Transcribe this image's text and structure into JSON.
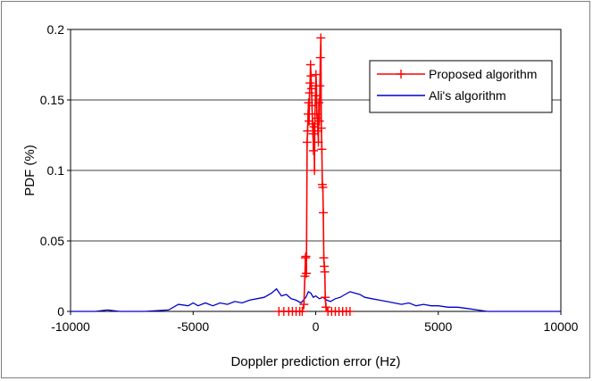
{
  "chart_data": {
    "type": "line",
    "title": "",
    "xlabel": "Doppler prediction error (Hz)",
    "ylabel": "PDF (%)",
    "xlim": [
      -10000,
      10000
    ],
    "ylim": [
      0,
      0.2
    ],
    "x_ticks": [
      "-10000",
      "-5000",
      "0",
      "5000",
      "10000"
    ],
    "y_ticks": [
      "0",
      "0.05",
      "0.1",
      "0.15",
      "0.2"
    ],
    "x_tick_values": [
      -10000,
      -5000,
      0,
      5000,
      10000
    ],
    "y_tick_values": [
      0,
      0.05,
      0.1,
      0.15,
      0.2
    ],
    "grid": "horizontal",
    "legend_position": "top-right",
    "series": [
      {
        "name": "Proposed algorithm",
        "color": "#ff0000",
        "marker": "plus",
        "points": [
          [
            -1500,
            0
          ],
          [
            -1300,
            0
          ],
          [
            -1100,
            0
          ],
          [
            -950,
            0
          ],
          [
            -800,
            0
          ],
          [
            -650,
            0
          ],
          [
            -550,
            0
          ],
          [
            -480,
            0.005
          ],
          [
            -440,
            0.025
          ],
          [
            -420,
            0.038
          ],
          [
            -400,
            0.039
          ],
          [
            -380,
            0.027
          ],
          [
            -350,
            0.12
          ],
          [
            -330,
            0.128
          ],
          [
            -310,
            0.14
          ],
          [
            -290,
            0.148
          ],
          [
            -270,
            0.135
          ],
          [
            -250,
            0.155
          ],
          [
            -230,
            0.162
          ],
          [
            -210,
            0.175
          ],
          [
            -190,
            0.167
          ],
          [
            -170,
            0.158
          ],
          [
            -150,
            0.146
          ],
          [
            -130,
            0.133
          ],
          [
            -110,
            0.126
          ],
          [
            -90,
            0.114
          ],
          [
            -70,
            0.131
          ],
          [
            -50,
            0.1
          ],
          [
            -30,
            0.14
          ],
          [
            -10,
            0.153
          ],
          [
            10,
            0.168
          ],
          [
            30,
            0.16
          ],
          [
            50,
            0.14
          ],
          [
            70,
            0.137
          ],
          [
            90,
            0.128
          ],
          [
            110,
            0.12
          ],
          [
            130,
            0.148
          ],
          [
            150,
            0.135
          ],
          [
            170,
            0.16
          ],
          [
            190,
            0.18
          ],
          [
            210,
            0.194
          ],
          [
            230,
            0.13
          ],
          [
            250,
            0.115
          ],
          [
            270,
            0.09
          ],
          [
            290,
            0.088
          ],
          [
            310,
            0.07
          ],
          [
            330,
            0.038
          ],
          [
            350,
            0.032
          ],
          [
            370,
            0.028
          ],
          [
            390,
            0.01
          ],
          [
            420,
            0.003
          ],
          [
            500,
            0
          ],
          [
            650,
            0
          ],
          [
            800,
            0
          ],
          [
            950,
            0
          ],
          [
            1100,
            0
          ],
          [
            1250,
            0
          ],
          [
            1400,
            0
          ]
        ]
      },
      {
        "name": "Ali's algorithm",
        "color": "#0000cc",
        "marker": "none",
        "points": [
          [
            -10000,
            0
          ],
          [
            -9000,
            0
          ],
          [
            -8500,
            0.001
          ],
          [
            -8000,
            0
          ],
          [
            -7000,
            0
          ],
          [
            -6000,
            0.001
          ],
          [
            -5600,
            0.005
          ],
          [
            -5200,
            0.004
          ],
          [
            -5000,
            0.006
          ],
          [
            -4800,
            0.004
          ],
          [
            -4500,
            0.006
          ],
          [
            -4200,
            0.004
          ],
          [
            -3900,
            0.006
          ],
          [
            -3600,
            0.005
          ],
          [
            -3300,
            0.007
          ],
          [
            -3000,
            0.006
          ],
          [
            -2700,
            0.008
          ],
          [
            -2400,
            0.009
          ],
          [
            -2100,
            0.01
          ],
          [
            -1800,
            0.013
          ],
          [
            -1600,
            0.016
          ],
          [
            -1400,
            0.011
          ],
          [
            -1200,
            0.012
          ],
          [
            -1000,
            0.009
          ],
          [
            -800,
            0.008
          ],
          [
            -600,
            0.006
          ],
          [
            -400,
            0.01
          ],
          [
            -300,
            0.014
          ],
          [
            -200,
            0.013
          ],
          [
            -100,
            0.01
          ],
          [
            0,
            0.011
          ],
          [
            150,
            0.009
          ],
          [
            300,
            0.01
          ],
          [
            450,
            0.008
          ],
          [
            600,
            0.007
          ],
          [
            800,
            0.009
          ],
          [
            1000,
            0.01
          ],
          [
            1200,
            0.012
          ],
          [
            1400,
            0.014
          ],
          [
            1600,
            0.013
          ],
          [
            1800,
            0.012
          ],
          [
            2000,
            0.01
          ],
          [
            2300,
            0.009
          ],
          [
            2600,
            0.008
          ],
          [
            2900,
            0.007
          ],
          [
            3200,
            0.006
          ],
          [
            3500,
            0.005
          ],
          [
            3800,
            0.006
          ],
          [
            4100,
            0.004
          ],
          [
            4400,
            0.005
          ],
          [
            4700,
            0.004
          ],
          [
            5000,
            0.004
          ],
          [
            5400,
            0.003
          ],
          [
            5800,
            0.003
          ],
          [
            6200,
            0.002
          ],
          [
            6600,
            0.001
          ],
          [
            7000,
            0
          ],
          [
            8000,
            0
          ],
          [
            9000,
            0
          ],
          [
            10000,
            0
          ]
        ]
      }
    ]
  }
}
